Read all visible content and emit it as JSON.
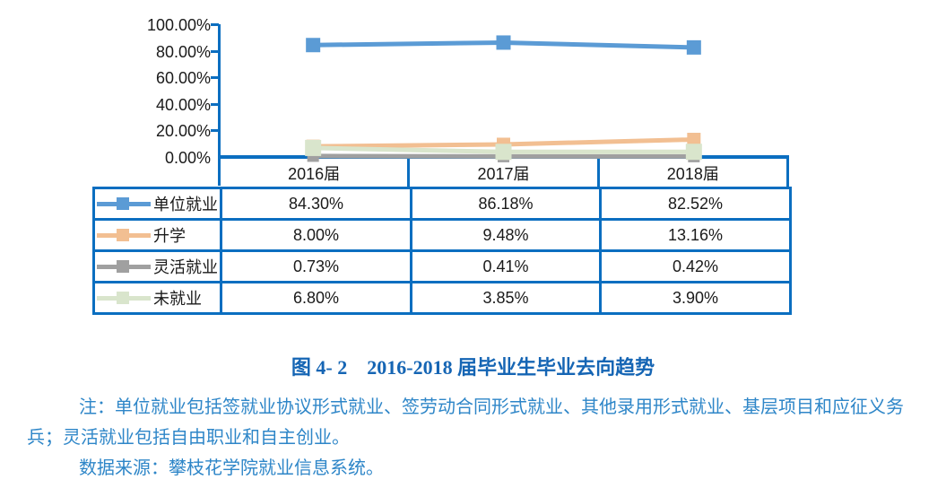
{
  "chart_data": {
    "type": "line",
    "title": "图 4- 2　2016-2018 届毕业生毕业去向趋势",
    "categories": [
      "2016届",
      "2017届",
      "2018届"
    ],
    "yticks": [
      "100.00%",
      "80.00%",
      "60.00%",
      "40.00%",
      "20.00%",
      "0.00%"
    ],
    "ylim": [
      0,
      100
    ],
    "grid": false,
    "legend_position": "table-left",
    "marker": "square",
    "series": [
      {
        "name": "单位就业",
        "color": "#5b9bd5",
        "values": [
          84.3,
          86.18,
          82.52
        ],
        "values_display": [
          "84.30%",
          "86.18%",
          "82.52%"
        ]
      },
      {
        "name": "升学",
        "color": "#f2bf92",
        "values": [
          8.0,
          9.48,
          13.16
        ],
        "values_display": [
          "8.00%",
          "9.48%",
          "13.16%"
        ]
      },
      {
        "name": "灵活就业",
        "color": "#a0a0a0",
        "values": [
          0.73,
          0.41,
          0.42
        ],
        "values_display": [
          "0.73%",
          "0.41%",
          "0.42%"
        ]
      },
      {
        "name": "未就业",
        "color": "#d9e5cc",
        "values": [
          6.8,
          3.85,
          3.9
        ],
        "values_display": [
          "6.80%",
          "3.85%",
          "3.90%"
        ]
      }
    ]
  },
  "caption": "图 4- 2　2016-2018 届毕业生毕业去向趋势",
  "notes": {
    "line1": "注：单位就业包括签就业协议形式就业、签劳动合同形式就业、其他录用形式就业、基层项目和应征义务",
    "line2": "兵；灵活就业包括自由职业和自主创业。",
    "line3": "数据来源：攀枝花学院就业信息系统。"
  },
  "colors": {
    "border_blue": "#0b6ec0",
    "caption_blue": "#1565b4",
    "note_blue": "#2e86c8"
  }
}
